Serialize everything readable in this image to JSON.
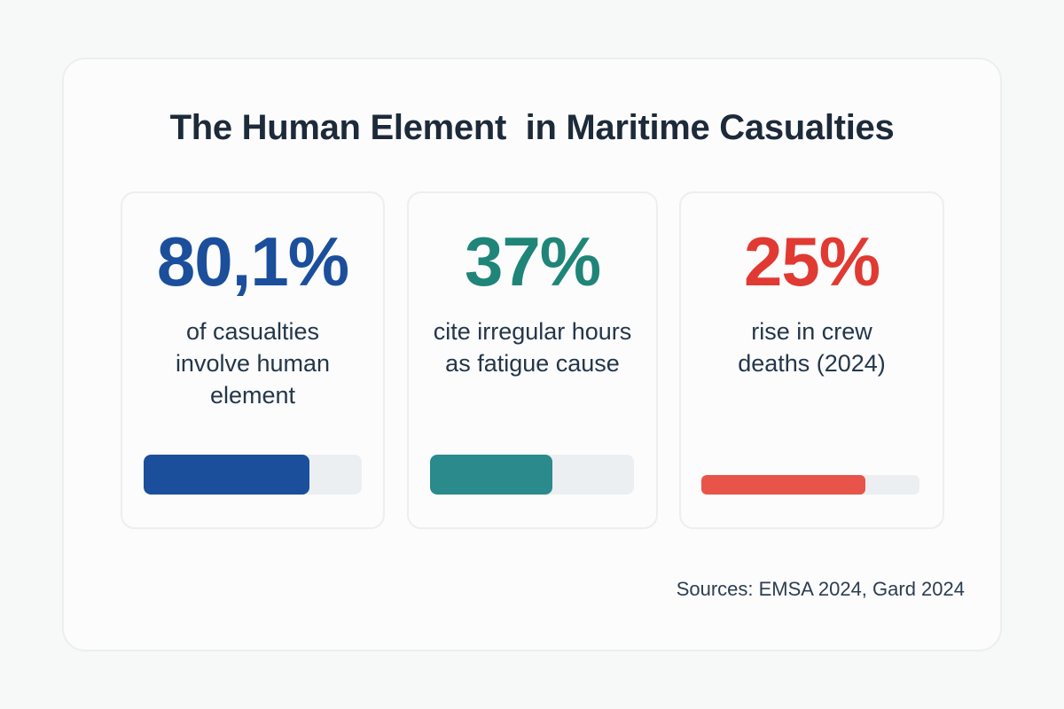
{
  "title": "The Human Element  in Maritime Casualties",
  "cards": [
    {
      "value": "80,1%",
      "description": "of casualties involve human element",
      "color": "#1b4f9c",
      "bar_color": "#1b4f9c",
      "bar_fill": 0.76
    },
    {
      "value": "37%",
      "description": "cite irregular hours as fatigue cause",
      "color": "#1f8578",
      "bar_color": "#2a8a8c",
      "bar_fill": 0.6
    },
    {
      "value": "25%",
      "description": "rise in crew deaths (2024)",
      "color": "#e03a32",
      "bar_color": "#e8544a",
      "bar_fill": 0.75
    }
  ],
  "sources": "Sources: EMSA 2024, Gard 2024"
}
